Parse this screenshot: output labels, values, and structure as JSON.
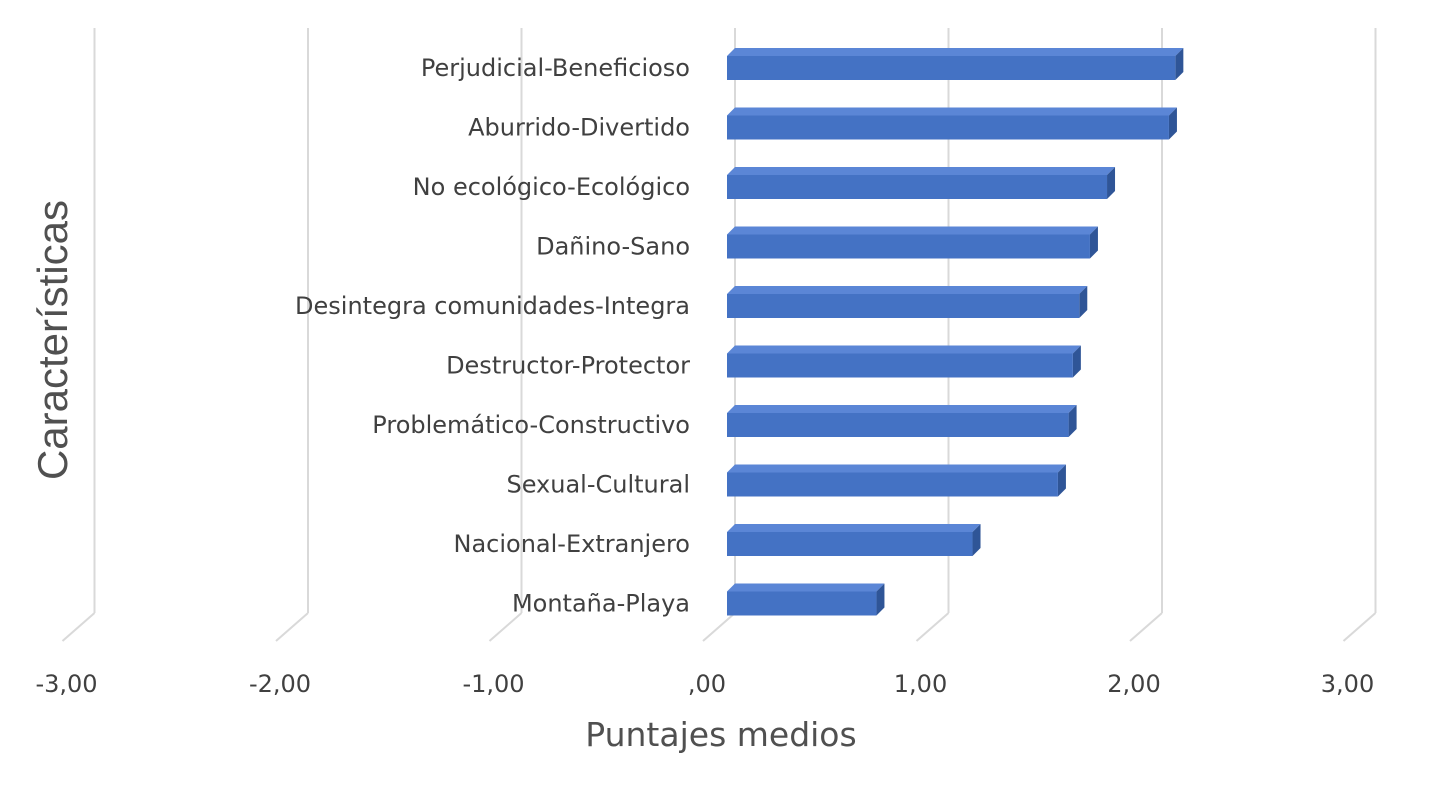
{
  "chart_data": {
    "type": "bar",
    "orientation": "horizontal",
    "style": "3d",
    "xlabel": "Puntajes medios",
    "ylabel": "Características",
    "xlim": [
      -3,
      3
    ],
    "ticks": [
      -3,
      -2,
      -1,
      0,
      1,
      2,
      3
    ],
    "tick_labels": [
      "-3,00",
      "-2,00",
      "-1,00",
      ",00",
      "1,00",
      "2,00",
      "3,00"
    ],
    "grid": true,
    "categories": [
      "Perjudicial-Beneficioso",
      "Aburrido-Divertido",
      "No ecológico-Ecológico",
      "Dañino-Sano",
      "Desintegra comunidades-Integra",
      "Destructor-Protector",
      "Problemático-Constructivo",
      "Sexual-Cultural",
      "Nacional-Extranjero",
      "Montaña-Playa"
    ],
    "values": [
      2.1,
      2.07,
      1.78,
      1.7,
      1.65,
      1.62,
      1.6,
      1.55,
      1.15,
      0.7
    ],
    "colors": {
      "bar_front": "#4472C4",
      "bar_top": "#5B86D6",
      "bar_side": "#2F5597",
      "grid": "#D9D9D9",
      "text": "#404040"
    }
  }
}
